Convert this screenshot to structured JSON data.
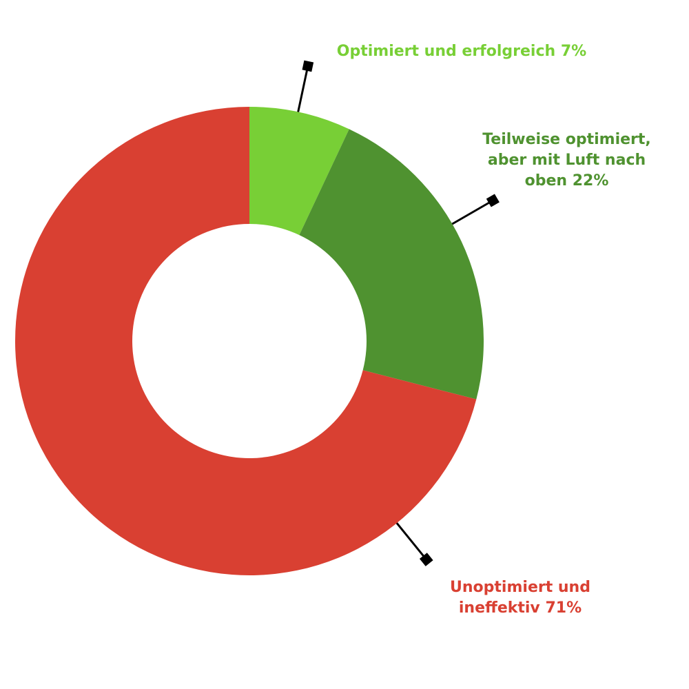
{
  "chart_data": {
    "type": "donut",
    "categories": [
      "Optimiert und erfolgreich",
      "Teilweise optimiert, aber mit Luft nach oben",
      "Unoptimiert und ineffektiv"
    ],
    "values": [
      7,
      22,
      71
    ],
    "value_labels": [
      "7%",
      "22%",
      "71%"
    ],
    "colors": [
      "#78cf36",
      "#4f9230",
      "#d94032"
    ]
  }
}
